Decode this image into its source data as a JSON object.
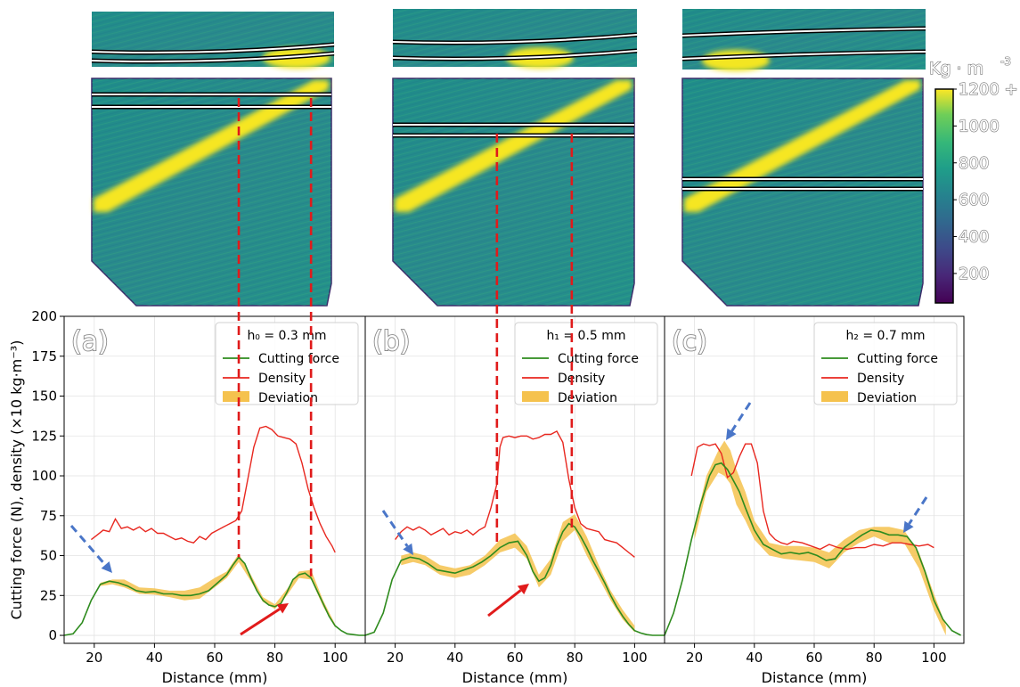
{
  "colorbar": {
    "unit": "Kg · m",
    "unit_exponent": "-3",
    "tick_labels": [
      "1200 +",
      "1000",
      "800",
      "600",
      "400",
      "200"
    ],
    "tick_values": [
      1200,
      1000,
      800,
      600,
      400,
      200
    ],
    "range": [
      40,
      1200
    ],
    "colormap": "viridis"
  },
  "colors": {
    "cutting_force": "#2e8b1e",
    "density": "#e8271f",
    "deviation": "#f5c24e",
    "blue_arrow": "#4a76c8",
    "red_arrow": "#e11b1b",
    "dashed_line": "#e01b1b"
  },
  "chart_data": [
    {
      "type": "line",
      "panel_label": "(a)",
      "legend_title": "h₀ = 0.3 mm",
      "legend_position": "top-right",
      "xlabel": "Distance (mm)",
      "ylabel": "Cutting force (N), density (×10 kg·m⁻³)",
      "xlim": [
        10,
        110
      ],
      "ylim": [
        -5,
        200
      ],
      "xticks": [
        20,
        40,
        60,
        80,
        100
      ],
      "yticks": [
        0,
        25,
        50,
        75,
        100,
        125,
        150,
        175,
        200
      ],
      "grid": true,
      "series": [
        {
          "name": "Cutting force",
          "kind": "line",
          "x": [
            10,
            13,
            16,
            19,
            22,
            25,
            28,
            31,
            34,
            37,
            40,
            43,
            46,
            49,
            52,
            55,
            58,
            61,
            64,
            66,
            68,
            70,
            72,
            74,
            76,
            78,
            80,
            82,
            84,
            86,
            88,
            90,
            92,
            94,
            96,
            98,
            100,
            102,
            104,
            106,
            108,
            110
          ],
          "y": [
            0,
            1,
            8,
            22,
            32,
            34,
            33,
            31,
            28,
            27,
            27.5,
            26,
            26,
            25,
            25,
            26,
            28,
            33,
            38,
            44,
            49,
            45,
            36,
            28,
            22,
            19,
            18,
            20,
            27,
            35,
            38,
            39,
            36,
            28,
            20,
            12,
            6,
            3,
            1,
            0.5,
            0,
            0
          ]
        },
        {
          "name": "Density",
          "kind": "line",
          "x": [
            19,
            21,
            23,
            25,
            27,
            29,
            31,
            33,
            35,
            37,
            39,
            41,
            43,
            45,
            47,
            49,
            51,
            53,
            55,
            57,
            59,
            61,
            63,
            65,
            67,
            69,
            71,
            73,
            75,
            77,
            79,
            81,
            83,
            85,
            87,
            89,
            91,
            93,
            95,
            97,
            99,
            100
          ],
          "y": [
            60,
            63,
            66,
            65,
            73,
            67,
            68,
            66,
            68,
            65,
            67,
            64,
            64,
            62,
            60,
            61,
            59,
            58,
            62,
            60,
            64,
            66,
            68,
            70,
            72,
            78,
            98,
            118,
            130,
            131,
            129,
            125,
            124,
            123,
            120,
            108,
            92,
            80,
            70,
            62,
            56,
            52
          ]
        },
        {
          "name": "Deviation",
          "kind": "band",
          "x": [
            22,
            26,
            30,
            35,
            40,
            45,
            50,
            55,
            60,
            64,
            68,
            72,
            76,
            80,
            84,
            88,
            92,
            96,
            100
          ],
          "lower": [
            31,
            32,
            30,
            26,
            25.5,
            24,
            22,
            23,
            30,
            36,
            46,
            34,
            21,
            16.5,
            25,
            36,
            35,
            18,
            5
          ],
          "upper": [
            33,
            35,
            35,
            30,
            29.5,
            28,
            28,
            30,
            36,
            40,
            51,
            38,
            24,
            19.5,
            29,
            40,
            41,
            22,
            7
          ]
        }
      ],
      "annotations": {
        "dashed_x": [
          68,
          92
        ]
      }
    },
    {
      "type": "line",
      "panel_label": "(b)",
      "legend_title": "h₁ = 0.5 mm",
      "legend_position": "top-right",
      "xlabel": "Distance (mm)",
      "xlim": [
        10,
        110
      ],
      "ylim": [
        -5,
        200
      ],
      "xticks": [
        20,
        40,
        60,
        80,
        100
      ],
      "grid": true,
      "series": [
        {
          "name": "Cutting force",
          "kind": "line",
          "x": [
            10,
            13,
            16,
            19,
            22,
            25,
            28,
            31,
            34,
            37,
            40,
            43,
            46,
            49,
            52,
            55,
            58,
            61,
            64,
            66,
            68,
            70,
            72,
            74,
            76,
            78,
            80,
            82,
            84,
            86,
            88,
            90,
            92,
            94,
            96,
            98,
            100,
            102,
            104,
            106,
            108,
            110
          ],
          "y": [
            0,
            2,
            14,
            35,
            47,
            49,
            48,
            45,
            41,
            40,
            39,
            41,
            43,
            46,
            50,
            55,
            58,
            59,
            50,
            40,
            34,
            36,
            44,
            56,
            65,
            70,
            68,
            62,
            55,
            47,
            40,
            33,
            25,
            18,
            12,
            7,
            3,
            1.5,
            0.5,
            0,
            0,
            0
          ]
        },
        {
          "name": "Density",
          "kind": "line",
          "x": [
            20,
            22,
            24,
            26,
            28,
            30,
            32,
            34,
            36,
            38,
            40,
            42,
            44,
            46,
            48,
            50,
            52,
            54,
            55,
            56,
            58,
            60,
            62,
            64,
            66,
            68,
            70,
            72,
            74,
            76,
            78,
            80,
            82,
            84,
            86,
            88,
            90,
            92,
            94,
            96,
            98,
            100
          ],
          "y": [
            60,
            65,
            68,
            66,
            68,
            66,
            63,
            65,
            67,
            63,
            65,
            64,
            66,
            63,
            66,
            68,
            80,
            95,
            118,
            124,
            125,
            124,
            125,
            125,
            123,
            124,
            126,
            126,
            128,
            121,
            98,
            80,
            70,
            67,
            66,
            65,
            60,
            59,
            58,
            55,
            52,
            49
          ]
        },
        {
          "name": "Deviation",
          "kind": "band",
          "x": [
            22,
            26,
            30,
            35,
            40,
            45,
            50,
            55,
            60,
            64,
            68,
            72,
            76,
            80,
            84,
            88,
            92,
            96,
            100
          ],
          "lower": [
            44,
            46,
            44,
            38,
            36,
            38,
            44,
            52,
            55,
            48,
            30,
            38,
            59,
            66,
            50,
            36,
            22,
            10,
            2
          ],
          "upper": [
            50,
            52,
            50,
            44,
            42,
            44,
            50,
            60,
            64,
            56,
            38,
            48,
            71,
            76,
            62,
            44,
            28,
            16,
            6
          ]
        }
      ],
      "annotations": {
        "dashed_x": [
          54,
          79
        ]
      }
    },
    {
      "type": "line",
      "panel_label": "(c)",
      "legend_title": "h₂ = 0.7 mm",
      "legend_position": "top-right",
      "xlabel": "Distance (mm)",
      "xlim": [
        10,
        110
      ],
      "ylim": [
        -5,
        200
      ],
      "xticks": [
        20,
        40,
        60,
        80,
        100
      ],
      "grid": true,
      "series": [
        {
          "name": "Cutting force",
          "kind": "line",
          "x": [
            10,
            13,
            16,
            19,
            22,
            25,
            27,
            29,
            31,
            33,
            35,
            37,
            40,
            43,
            46,
            49,
            52,
            55,
            58,
            61,
            64,
            67,
            70,
            73,
            76,
            79,
            82,
            85,
            88,
            91,
            94,
            97,
            100,
            103,
            106,
            109
          ],
          "y": [
            0,
            14,
            35,
            60,
            82,
            100,
            107,
            108,
            104,
            97,
            90,
            80,
            66,
            57,
            54,
            51,
            52,
            51,
            52,
            50,
            47,
            48,
            55,
            59,
            63,
            66,
            65,
            63,
            63,
            62,
            55,
            40,
            22,
            10,
            3,
            0
          ]
        },
        {
          "name": "Density",
          "kind": "line",
          "x": [
            19,
            21,
            23,
            25,
            27,
            29,
            31,
            33,
            35,
            37,
            39,
            41,
            43,
            45,
            47,
            49,
            51,
            53,
            56,
            59,
            62,
            65,
            68,
            71,
            74,
            77,
            80,
            83,
            86,
            89,
            92,
            95,
            98,
            100
          ],
          "y": [
            100,
            118,
            120,
            119,
            120,
            114,
            99,
            102,
            112,
            120,
            120,
            108,
            78,
            64,
            60,
            58,
            57,
            59,
            58,
            56,
            54,
            57,
            55,
            54,
            55,
            55,
            57,
            56,
            58,
            58,
            57,
            56,
            57,
            55
          ]
        },
        {
          "name": "Deviation",
          "kind": "band",
          "x": [
            20,
            24,
            28,
            30,
            32,
            34,
            37,
            40,
            45,
            50,
            55,
            60,
            65,
            70,
            75,
            80,
            85,
            90,
            95,
            100,
            104
          ],
          "lower": [
            60,
            90,
            102,
            100,
            95,
            82,
            72,
            60,
            50,
            48,
            47,
            46,
            42,
            52,
            58,
            62,
            58,
            58,
            42,
            16,
            0
          ],
          "upper": [
            68,
            100,
            116,
            122,
            116,
            104,
            90,
            72,
            58,
            56,
            56,
            55,
            52,
            60,
            66,
            68,
            68,
            66,
            52,
            26,
            6
          ]
        }
      ],
      "annotations": {}
    }
  ]
}
